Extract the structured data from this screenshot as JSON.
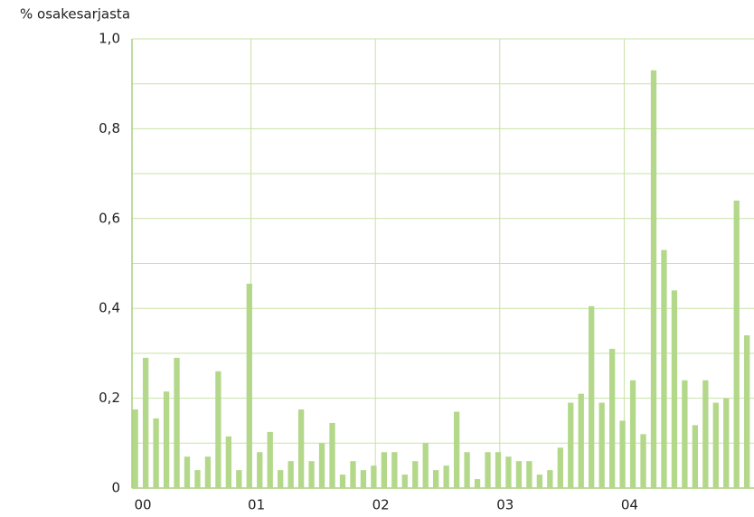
{
  "chart_data": {
    "type": "bar",
    "ylabel": "% osakesarjasta",
    "categories": [
      "00",
      null,
      null,
      null,
      null,
      null,
      null,
      null,
      null,
      null,
      null,
      null,
      "01",
      null,
      null,
      null,
      null,
      null,
      null,
      null,
      null,
      null,
      null,
      null,
      "02",
      null,
      null,
      null,
      null,
      null,
      null,
      null,
      null,
      null,
      null,
      null,
      "03",
      null,
      null,
      null,
      null,
      null,
      null,
      null,
      null,
      null,
      null,
      null,
      "04",
      null,
      null,
      null,
      null,
      null,
      null,
      null,
      null,
      null,
      null,
      null
    ],
    "values": [
      0.175,
      0.29,
      0.155,
      0.215,
      0.29,
      0.07,
      0.04,
      0.07,
      0.26,
      0.115,
      0.04,
      0.455,
      0.08,
      0.125,
      0.04,
      0.06,
      0.175,
      0.06,
      0.1,
      0.145,
      0.03,
      0.06,
      0.04,
      0.05,
      0.08,
      0.08,
      0.03,
      0.06,
      0.1,
      0.04,
      0.05,
      0.17,
      0.08,
      0.02,
      0.08,
      0.08,
      0.07,
      0.06,
      0.06,
      0.03,
      0.04,
      0.09,
      0.19,
      0.21,
      0.405,
      0.19,
      0.31,
      0.15,
      0.24,
      0.12,
      0.93,
      0.53,
      0.44,
      0.24,
      0.14,
      0.24,
      0.19,
      0.2,
      0.64,
      0.34
    ],
    "color": "#b3d88a",
    "grid_color": "#c8e2a6",
    "ylim": [
      0,
      1.0
    ],
    "yticks": [
      0,
      {
        "value": 0.2,
        "label": "0,2"
      },
      {
        "value": 0.4,
        "label": "0,4"
      },
      {
        "value": 0.6,
        "label": "0,6"
      },
      {
        "value": 0.8,
        "label": "0,8"
      },
      {
        "value": 1.0,
        "label": "1,0"
      }
    ],
    "minor_yticks": [
      0.1,
      0.3,
      0.5,
      0.7,
      0.9
    ],
    "grid": true
  }
}
